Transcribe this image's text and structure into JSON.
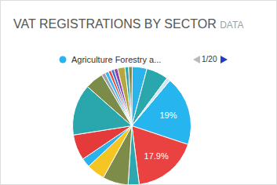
{
  "chart_data": {
    "type": "pie",
    "title": "VAT REGISTRATIONS BY SECTOR",
    "subtitle": "DATA",
    "categories": [
      "Agriculture Forestry a...",
      null,
      null,
      null,
      null,
      null,
      null,
      null,
      null,
      null,
      null,
      null,
      null,
      null,
      null,
      null,
      null,
      null,
      null,
      null
    ],
    "values": [
      19,
      17.9,
      3,
      7,
      5,
      2.5,
      7,
      14,
      5,
      1,
      1,
      0.8,
      0.8,
      1,
      2,
      1,
      1,
      4,
      6,
      1
    ],
    "value_labels": [
      "19%",
      "17.9%",
      null,
      null,
      null,
      null,
      null,
      null,
      null,
      null,
      null,
      null,
      null,
      null,
      null,
      null,
      null,
      null,
      null,
      null
    ],
    "data_labels": true,
    "colors": [
      "#26b5ee",
      "#ea4141",
      "#2ea8b0",
      "#7e8c4a",
      "#f5c623",
      "#2ab2ec",
      "#e53a3a",
      "#2aa6ad",
      "#7a8c48",
      "#9aa0a6",
      "#3bb8f0",
      "#e74c3c",
      "#3a6fd8",
      "#8e44ad",
      "#b5a642",
      "#2ea8b0",
      "#7f8c4a",
      "#2cb3ec",
      "#2aa7ad",
      "#cfe8f5"
    ],
    "legend": "top",
    "annotations": [
      "1/20"
    ]
  }
}
